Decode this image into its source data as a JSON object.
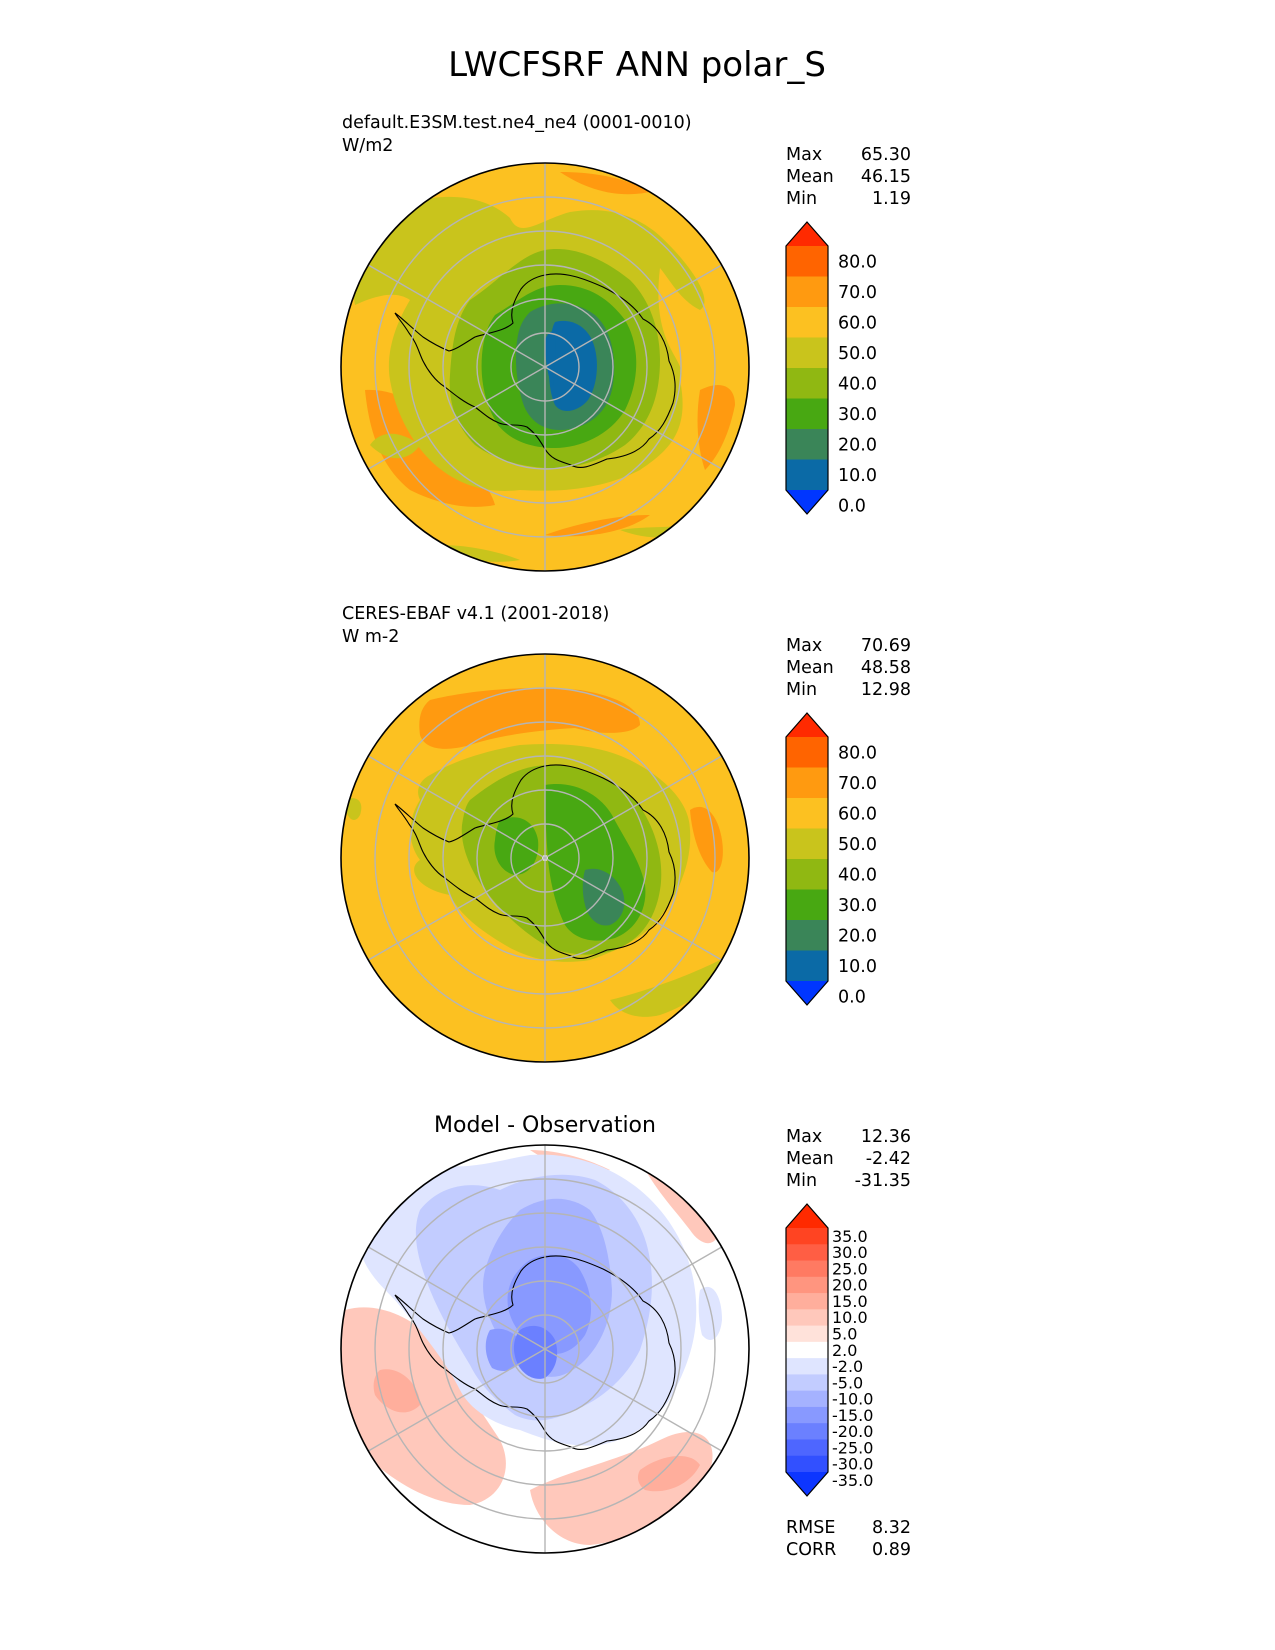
{
  "figure": {
    "title": "LWCFSRF ANN polar_S"
  },
  "chart_data": [
    {
      "type": "heatmap",
      "projection": "south-polar-stereographic",
      "label": "default.E3SM.test.ne4_ne4 (0001-0010)",
      "units": "W/m2",
      "stats": {
        "max_label": "Max",
        "mean_label": "Mean",
        "min_label": "Min",
        "max": "65.30",
        "mean": "46.15",
        "min": "1.19"
      },
      "colorbar": {
        "ticks": [
          "80.0",
          "70.0",
          "60.0",
          "50.0",
          "40.0",
          "30.0",
          "20.0",
          "10.0",
          "0.0"
        ],
        "colors": [
          "#ff2a00",
          "#ff6400",
          "#ff9a10",
          "#fcc121",
          "#c9c41c",
          "#90b812",
          "#48a812",
          "#3a8558",
          "#0b6aa6",
          "#0036ff"
        ],
        "extend": "both"
      },
      "field": {
        "background": "#fcc121",
        "colors": [
          "#0036ff",
          "#0b6aa6",
          "#3a8558",
          "#48a812",
          "#90b812",
          "#c9c41c",
          "#fcc121",
          "#ff9a10",
          "#ff6400",
          "#ff2a00"
        ]
      }
    },
    {
      "type": "heatmap",
      "projection": "south-polar-stereographic",
      "label": "CERES-EBAF v4.1 (2001-2018)",
      "units": "W m-2",
      "stats": {
        "max_label": "Max",
        "mean_label": "Mean",
        "min_label": "Min",
        "max": "70.69",
        "mean": "48.58",
        "min": "12.98"
      },
      "colorbar": {
        "ticks": [
          "80.0",
          "70.0",
          "60.0",
          "50.0",
          "40.0",
          "30.0",
          "20.0",
          "10.0",
          "0.0"
        ],
        "colors": [
          "#ff2a00",
          "#ff6400",
          "#ff9a10",
          "#fcc121",
          "#c9c41c",
          "#90b812",
          "#48a812",
          "#3a8558",
          "#0b6aa6",
          "#0036ff"
        ],
        "extend": "both"
      },
      "field": {
        "background": "#fcc121"
      }
    },
    {
      "type": "heatmap",
      "projection": "south-polar-stereographic",
      "title": "Model - Observation",
      "stats": {
        "max_label": "Max",
        "mean_label": "Mean",
        "min_label": "Min",
        "max": "12.36",
        "mean": "-2.42",
        "min": "-31.35"
      },
      "metrics": {
        "rmse_label": "RMSE",
        "corr_label": "CORR",
        "rmse": "8.32",
        "corr": "0.89"
      },
      "colorbar": {
        "ticks": [
          "35.0",
          "30.0",
          "25.0",
          "20.0",
          "15.0",
          "10.0",
          "5.0",
          "2.0",
          "-2.0",
          "-5.0",
          "-10.0",
          "-15.0",
          "-20.0",
          "-25.0",
          "-30.0",
          "-35.0"
        ],
        "colors": [
          "#ff2a00",
          "#ff4422",
          "#ff5e44",
          "#ff7a62",
          "#ff957f",
          "#ffae9c",
          "#ffc8bb",
          "#ffe2da",
          "#ffffff",
          "#dfe5ff",
          "#c2ccff",
          "#a5b2ff",
          "#8899ff",
          "#6b80ff",
          "#4e66ff",
          "#3250ff",
          "#0d36ff"
        ],
        "extend": "both"
      },
      "field": {
        "background": "#ffffff"
      }
    }
  ]
}
